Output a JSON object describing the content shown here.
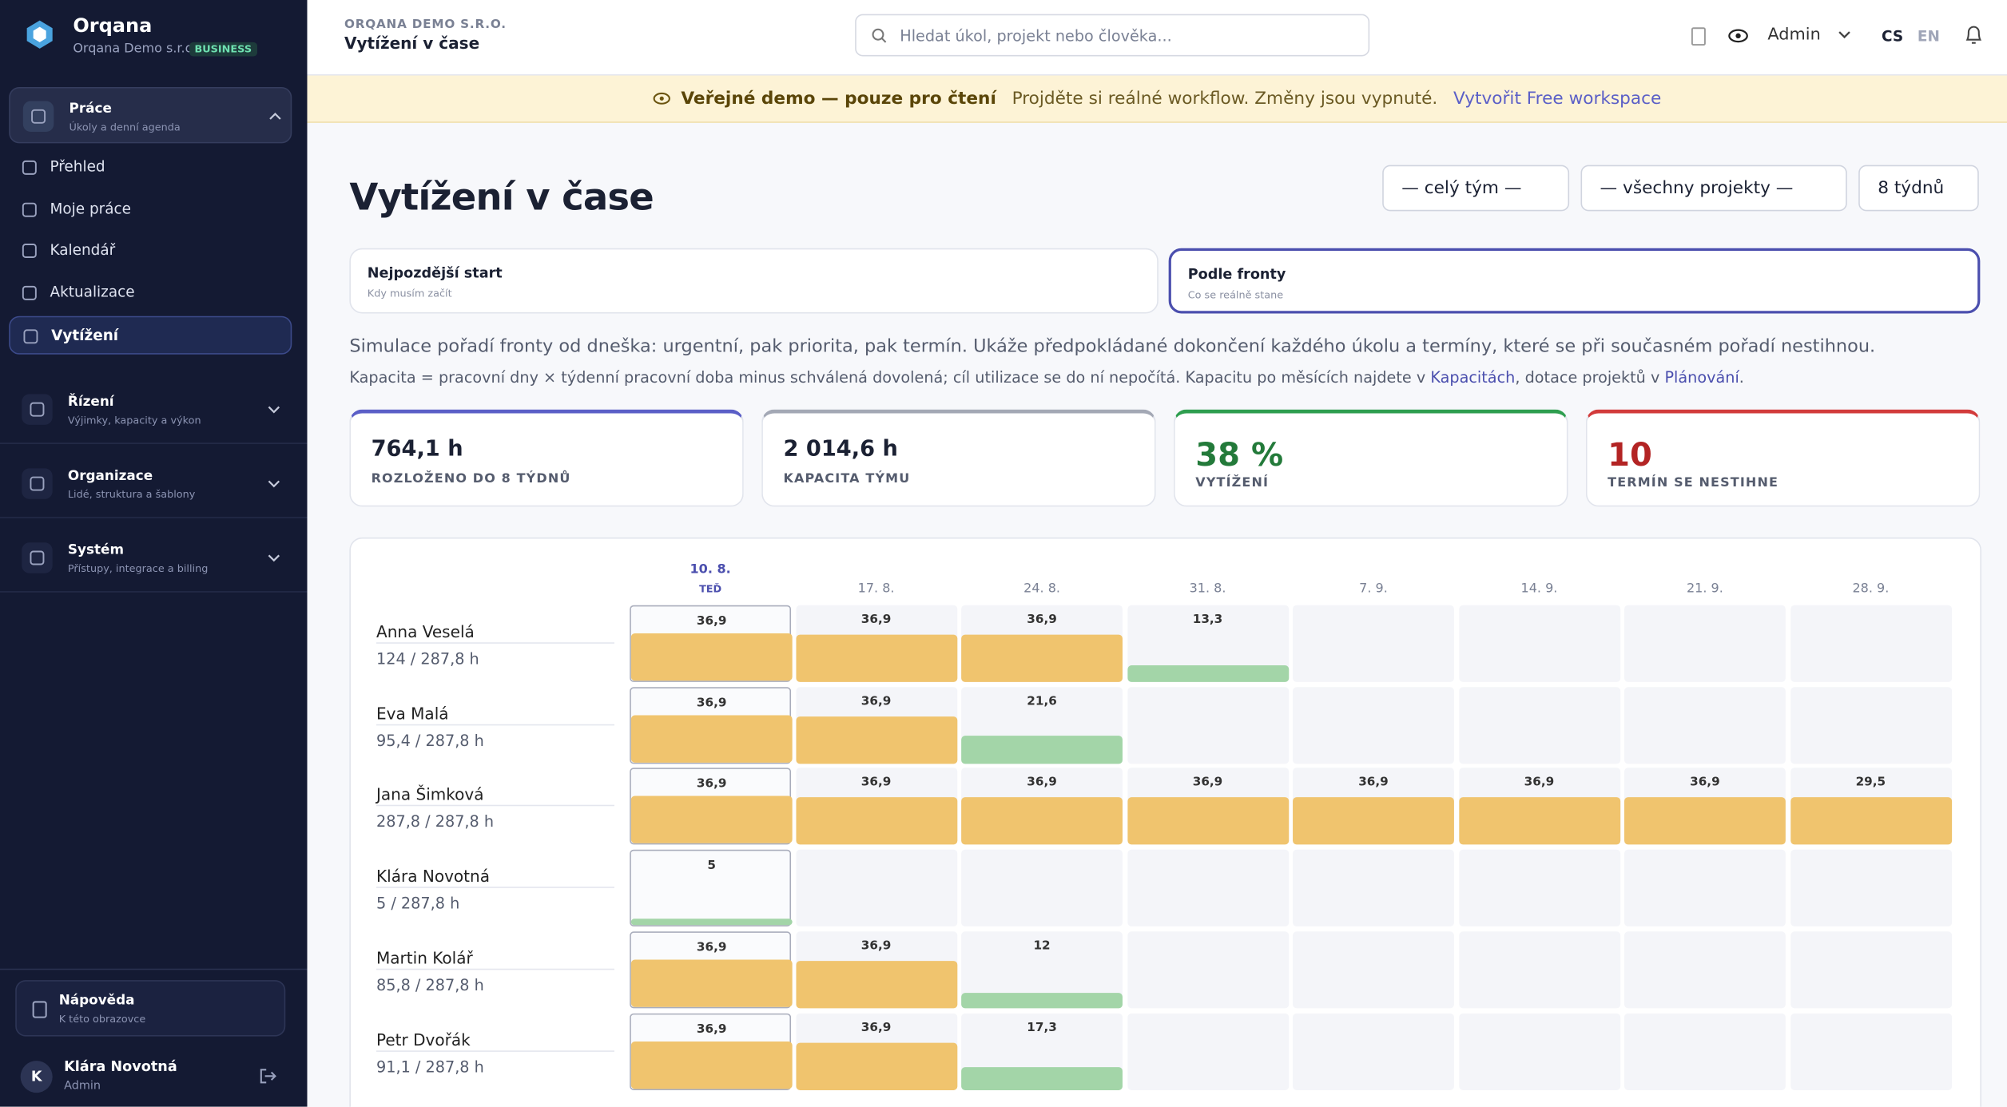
{
  "sidebar": {
    "brand": "Orqana",
    "org": "Orqana Demo s.r.o.",
    "plan": "BUSINESS",
    "sections": [
      {
        "title": "Práce",
        "subtitle": "Úkoly a denní agenda",
        "items": [
          "Přehled",
          "Moje práce",
          "Kalendář",
          "Aktualizace",
          "Vytížení"
        ]
      },
      {
        "title": "Řízení",
        "subtitle": "Výjimky, kapacity a výkon"
      },
      {
        "title": "Organizace",
        "subtitle": "Lidé, struktura a šablony"
      },
      {
        "title": "Systém",
        "subtitle": "Přístupy, integrace a billing"
      }
    ],
    "help": {
      "title": "Nápověda",
      "subtitle": "K této obrazovce"
    },
    "user": {
      "initial": "K",
      "name": "Klára Novotná",
      "role": "Admin"
    }
  },
  "header": {
    "org": "ORQANA DEMO S.R.O.",
    "title": "Vytížení v čase",
    "search": "Hledat úkol, projekt nebo člověka...",
    "role": "Admin",
    "langs": [
      "CS",
      "EN"
    ]
  },
  "banner": {
    "title": "Veřejné demo — pouze pro čtení",
    "text": "Projděte si reálné workflow. Změny jsou vypnuté.",
    "link": "Vytvořit Free workspace"
  },
  "page": {
    "title": "Vytížení v čase",
    "filters": [
      "— celý tým —",
      "— všechny projekty —",
      "8 týdnů"
    ],
    "tabs": [
      {
        "title": "Nejpozdější start",
        "subtitle": "Kdy musím začít"
      },
      {
        "title": "Podle fronty",
        "subtitle": "Co se reálně stane"
      }
    ],
    "description": "Simulace pořadí fronty od dneška: urgentní, pak priorita, pak termín. Ukáže předpokládané dokončení každého úkolu a termíny, které se při současném pořadí nestihnou.",
    "note": [
      "Kapacita = pracovní dny × týdenní pracovní doba minus schválená dovolená; cíl utilizace se do ní nepočítá. Kapacitu po měsících najdete v ",
      "Kapacitách",
      ", dotace projektů v ",
      "Plánování",
      "."
    ]
  },
  "stats": [
    {
      "value": "764,1 h",
      "label": "ROZLOŽENO DO 8 TÝDNŮ"
    },
    {
      "value": "2 014,6 h",
      "label": "KAPACITA TÝMU"
    },
    {
      "value": "38 %",
      "label": "VYTÍŽENÍ"
    },
    {
      "value": "10",
      "label": "TERMÍN SE NESTIHNE"
    }
  ],
  "grid": {
    "weeks": [
      "10. 8.",
      "17. 8.",
      "24. 8.",
      "31. 8.",
      "7. 9.",
      "14. 9.",
      "21. 9.",
      "28. 9."
    ],
    "current": "TEĎ",
    "rows": [
      {
        "name": "Anna Veselá",
        "total": "124 / 287,8 h",
        "cells": [
          "36,9",
          "36,9",
          "36,9",
          "13,3",
          null,
          null,
          null,
          null
        ]
      },
      {
        "name": "Eva Malá",
        "total": "95,4 / 287,8 h",
        "cells": [
          "36,9",
          "36,9",
          "21,6",
          null,
          null,
          null,
          null,
          null
        ]
      },
      {
        "name": "Jana Šimková",
        "total": "287,8 / 287,8 h",
        "cells": [
          "36,9",
          "36,9",
          "36,9",
          "36,9",
          "36,9",
          "36,9",
          "36,9",
          "29,5"
        ]
      },
      {
        "name": "Klára Novotná",
        "total": "5 / 287,8 h",
        "cells": [
          "5",
          null,
          null,
          null,
          null,
          null,
          null,
          null
        ]
      },
      {
        "name": "Martin Kolář",
        "total": "85,8 / 287,8 h",
        "cells": [
          "36,9",
          "36,9",
          "12",
          null,
          null,
          null,
          null,
          null
        ]
      },
      {
        "name": "Petr Dvořák",
        "total": "91,1 / 287,8 h",
        "cells": [
          "36,9",
          "36,9",
          "17,3",
          null,
          null,
          null,
          null,
          null
        ]
      }
    ]
  }
}
